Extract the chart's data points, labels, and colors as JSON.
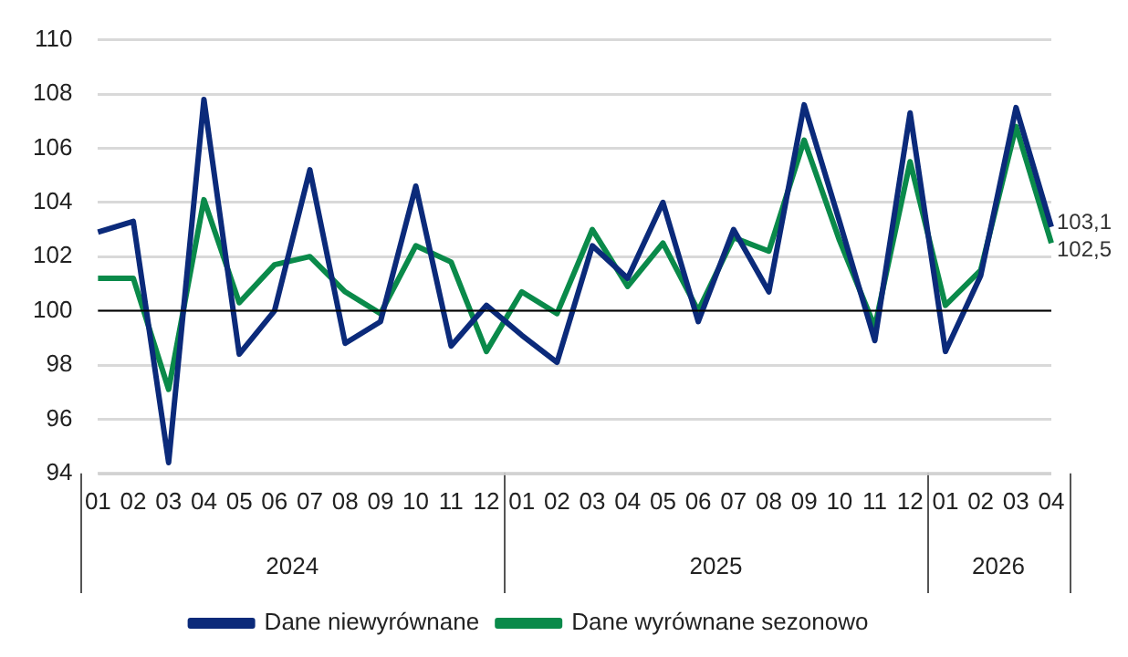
{
  "chart_data": {
    "type": "line",
    "categories": [
      "01",
      "02",
      "03",
      "04",
      "05",
      "06",
      "07",
      "08",
      "09",
      "10",
      "11",
      "12",
      "01",
      "02",
      "03",
      "04",
      "05",
      "06",
      "07",
      "08",
      "09",
      "10",
      "11",
      "12",
      "01",
      "02",
      "03",
      "04"
    ],
    "series": [
      {
        "name": "Dane niewyrównane",
        "color": "#0b2a7a",
        "values": [
          102.9,
          103.3,
          94.4,
          107.8,
          98.4,
          100.0,
          105.2,
          98.8,
          99.6,
          104.6,
          98.7,
          100.2,
          99.1,
          98.1,
          102.4,
          101.2,
          104.0,
          99.6,
          103.0,
          100.7,
          107.6,
          103.3,
          98.9,
          107.3,
          98.5,
          101.3,
          107.5,
          103.1
        ],
        "value_labels": [
          null,
          null,
          null,
          null,
          null,
          null,
          null,
          null,
          null,
          null,
          null,
          null,
          null,
          null,
          null,
          null,
          null,
          null,
          null,
          null,
          null,
          null,
          null,
          null,
          null,
          null,
          null,
          "103,1"
        ]
      },
      {
        "name": "Dane wyrównane sezonowo",
        "color": "#0a8a4a",
        "values": [
          101.2,
          101.2,
          97.1,
          104.1,
          100.3,
          101.7,
          102.0,
          100.7,
          99.9,
          102.4,
          101.8,
          98.5,
          100.7,
          99.9,
          103.0,
          100.9,
          102.5,
          100.0,
          102.7,
          102.2,
          106.3,
          102.6,
          99.4,
          105.5,
          100.2,
          101.5,
          106.8,
          102.5
        ],
        "value_labels": [
          null,
          null,
          null,
          null,
          null,
          null,
          null,
          null,
          null,
          null,
          null,
          null,
          null,
          null,
          null,
          null,
          null,
          null,
          null,
          null,
          null,
          null,
          null,
          null,
          null,
          null,
          null,
          "102,5"
        ]
      }
    ],
    "annotations": [
      "2024",
      "2025",
      "2026"
    ],
    "ylim": [
      94,
      110
    ],
    "yticks": [
      94,
      96,
      98,
      100,
      102,
      104,
      106,
      108,
      110
    ],
    "ref_lines": [
      {
        "axis": "y",
        "value": 100,
        "color": "#000000"
      }
    ],
    "grid": "y",
    "legend": "bottom",
    "marker": "none",
    "line_style": "solid"
  }
}
